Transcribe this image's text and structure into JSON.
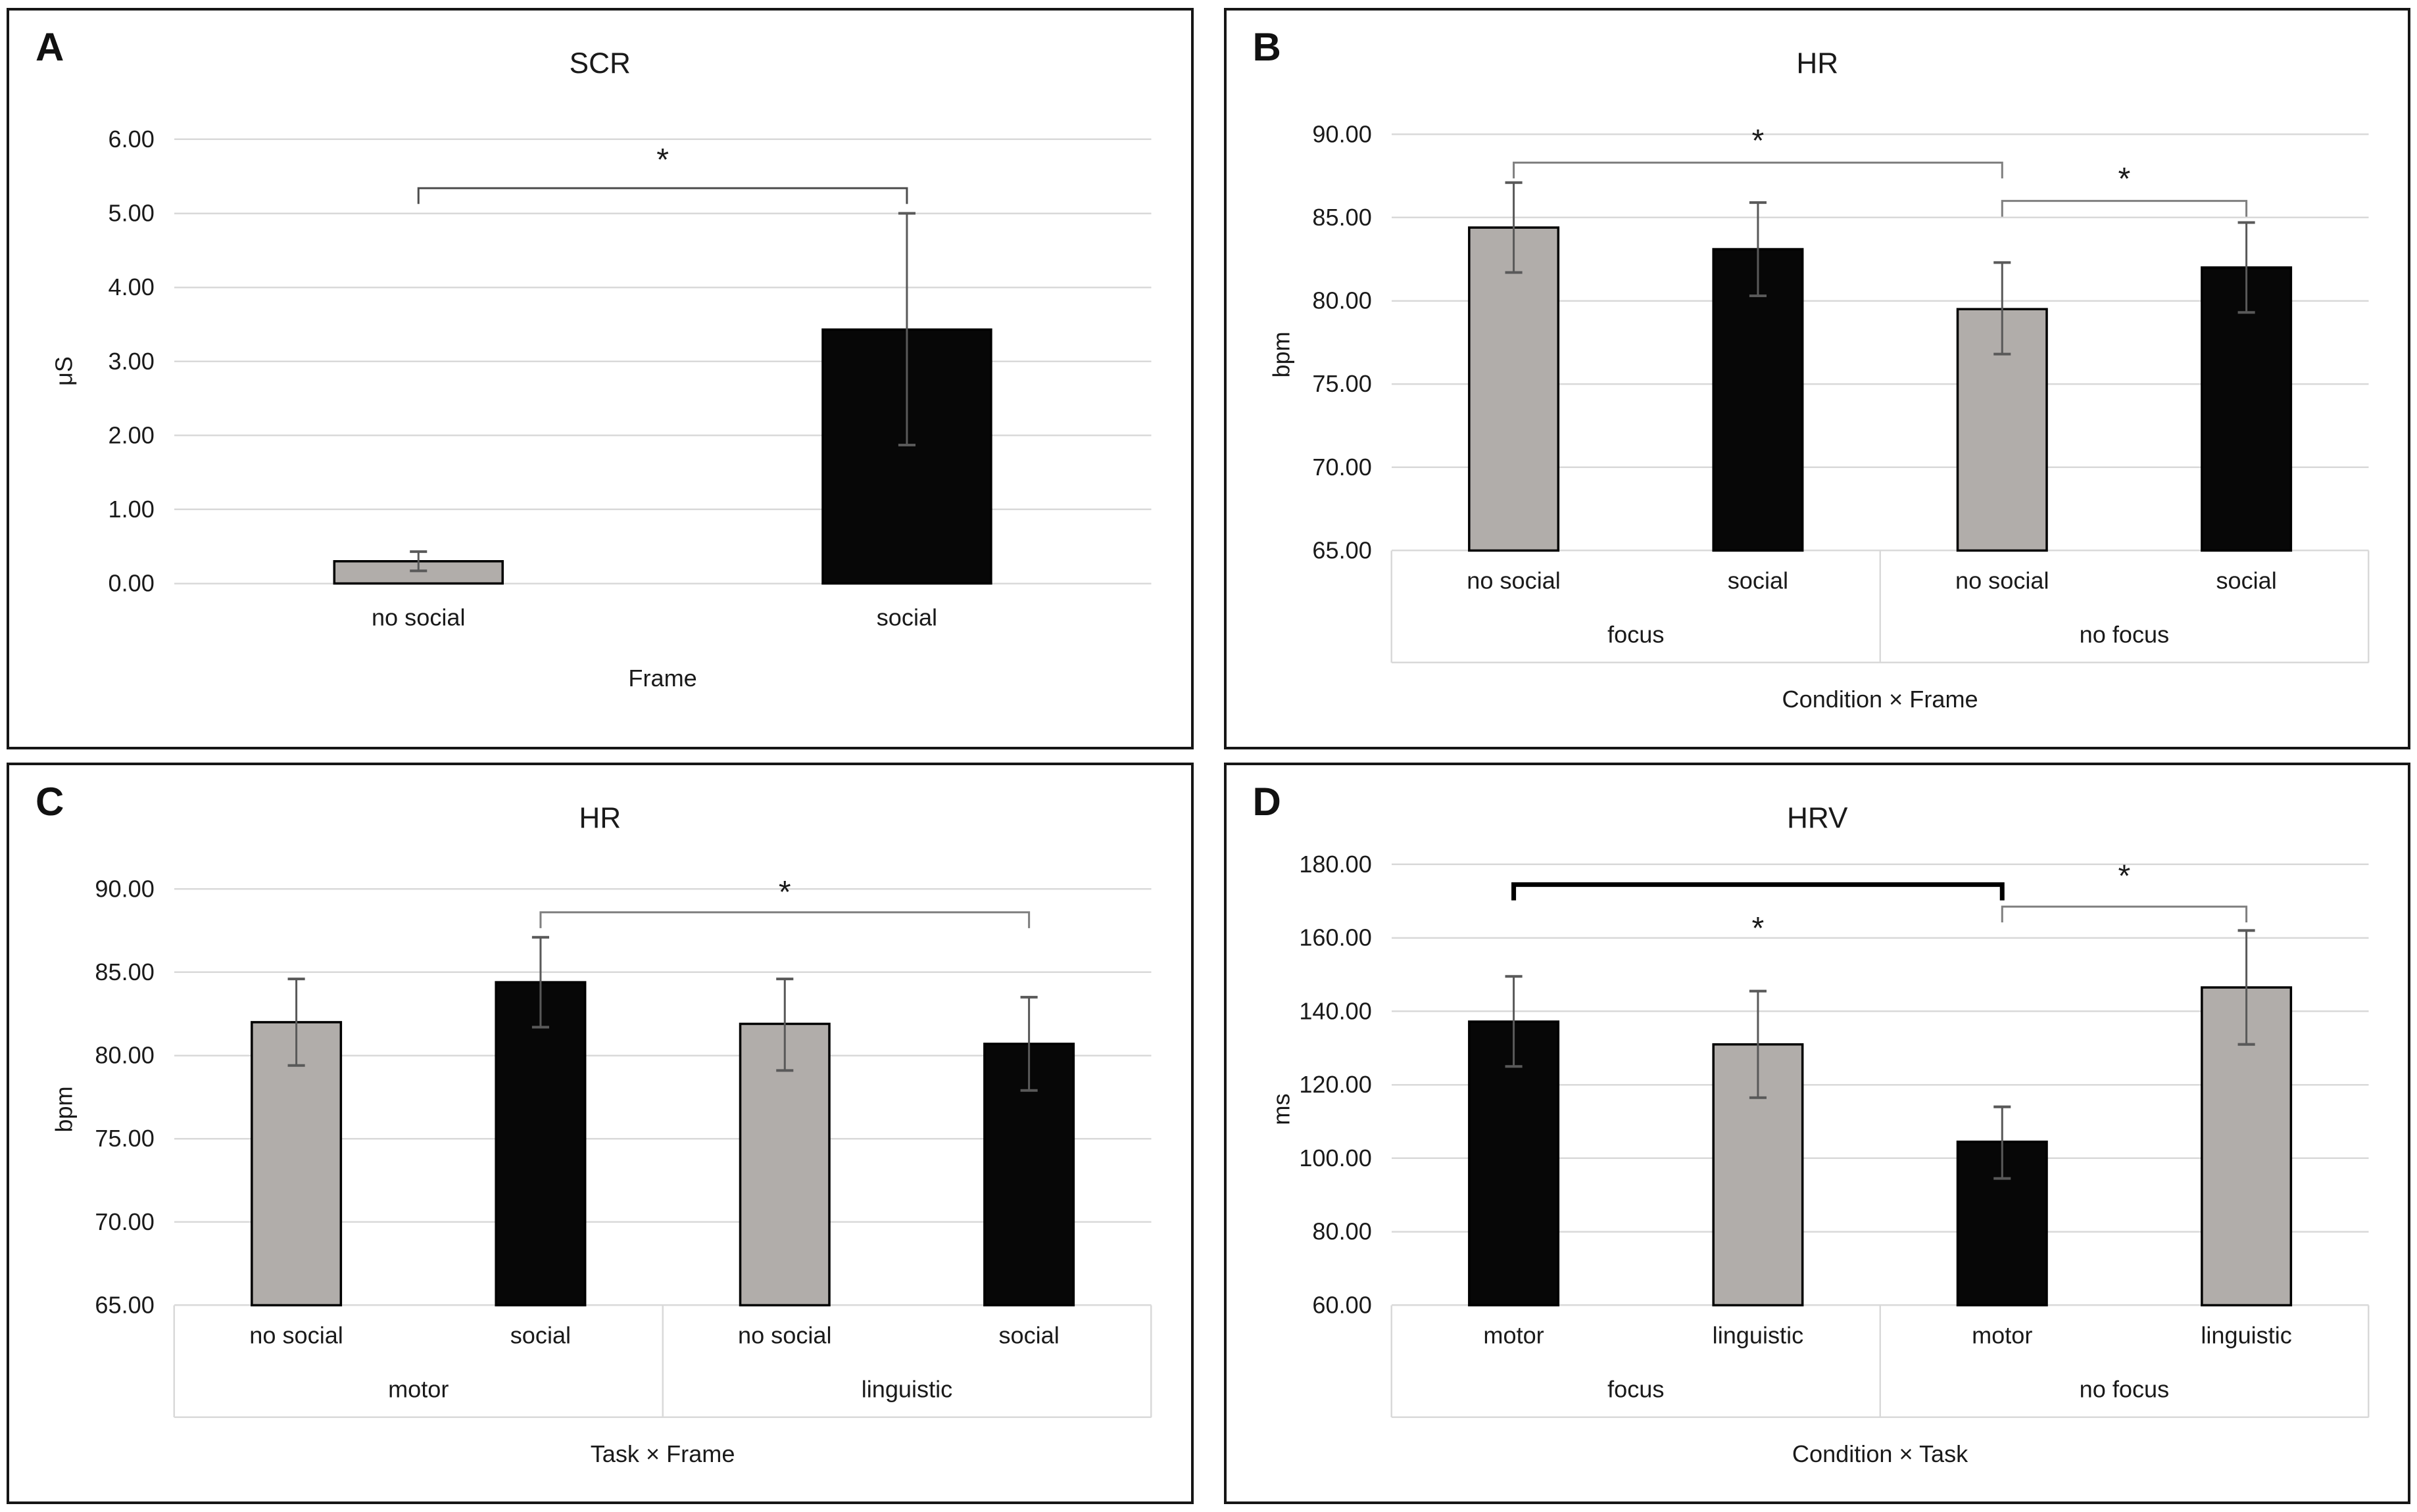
{
  "figure": {
    "background": "#ffffff",
    "panel_border_color": "#161616"
  },
  "colors": {
    "bar_gray": "#b1adaa",
    "bar_black": "#070707",
    "bar_border": "#000000",
    "gridline": "#d9d9d9",
    "error_bar": "#595959",
    "bracket_thin": "#7f7f7f",
    "bracket_dark": "#4d4d4d",
    "bracket_thick": "#000000",
    "table_line": "#d9d9d9",
    "text": "#1a1a1a"
  },
  "chart_data": [
    {
      "panel_label": "A",
      "type": "bar",
      "title": "SCR",
      "ylabel": "μS",
      "xlabel": "Frame",
      "ylim": [
        0,
        6
      ],
      "ytick_step": 1,
      "ymax_render": 6.45,
      "grid_on": true,
      "legend": "none",
      "categories": [
        "no social",
        "social"
      ],
      "groups": [],
      "bars": [
        {
          "category": "no social",
          "value": 0.3,
          "err": [
            0.17,
            0.43
          ],
          "color": "gray"
        },
        {
          "category": "social",
          "value": 3.43,
          "err": [
            1.87,
            5.0
          ],
          "color": "black"
        }
      ],
      "sig_brackets": [
        {
          "from": 0,
          "to": 1,
          "y": 5.34,
          "label": "*",
          "label_y": 5.72,
          "weight": "dark"
        }
      ]
    },
    {
      "panel_label": "B",
      "type": "bar",
      "title": "HR",
      "ylabel": "bpm",
      "xlabel": "Condition × Frame",
      "ylim": [
        65,
        90
      ],
      "ytick_step": 5,
      "ymax_render": 91.7,
      "grid_on": true,
      "legend": "none",
      "categories": [
        "no social",
        "social",
        "no social",
        "social"
      ],
      "groups": [
        {
          "label": "focus",
          "from": 0,
          "to": 1
        },
        {
          "label": "no focus",
          "from": 2,
          "to": 3
        }
      ],
      "bars": [
        {
          "category": "no social",
          "value": 84.4,
          "err": [
            81.7,
            87.1
          ],
          "color": "gray"
        },
        {
          "category": "social",
          "value": 83.1,
          "err": [
            80.3,
            85.9
          ],
          "color": "black"
        },
        {
          "category": "no social",
          "value": 79.5,
          "err": [
            76.8,
            82.3
          ],
          "color": "gray"
        },
        {
          "category": "social",
          "value": 82.0,
          "err": [
            79.3,
            84.7
          ],
          "color": "black"
        }
      ],
      "sig_brackets": [
        {
          "from": 0,
          "to": 2,
          "y": 88.3,
          "label": "*",
          "label_y": 89.6,
          "weight": "thin"
        },
        {
          "from": 2,
          "to": 3,
          "y": 86.0,
          "label": "*",
          "label_y": 87.3,
          "weight": "thin"
        }
      ]
    },
    {
      "panel_label": "C",
      "type": "bar",
      "title": "HR",
      "ylabel": "bpm",
      "xlabel": "Task × Frame",
      "ylim": [
        65,
        90
      ],
      "ytick_step": 5,
      "ymax_render": 91.7,
      "grid_on": true,
      "legend": "none",
      "categories": [
        "no social",
        "social",
        "no social",
        "social"
      ],
      "groups": [
        {
          "label": "motor",
          "from": 0,
          "to": 1
        },
        {
          "label": "linguistic",
          "from": 2,
          "to": 3
        }
      ],
      "bars": [
        {
          "category": "no social",
          "value": 82.0,
          "err": [
            79.4,
            84.6
          ],
          "color": "gray"
        },
        {
          "category": "social",
          "value": 84.4,
          "err": [
            81.7,
            87.1
          ],
          "color": "black"
        },
        {
          "category": "no social",
          "value": 81.9,
          "err": [
            79.1,
            84.6
          ],
          "color": "gray"
        },
        {
          "category": "social",
          "value": 80.7,
          "err": [
            77.9,
            83.5
          ],
          "color": "black"
        }
      ],
      "sig_brackets": [
        {
          "from": 1,
          "to": 3,
          "y": 88.6,
          "label": "*",
          "label_y": 89.8,
          "weight": "thin"
        }
      ]
    },
    {
      "panel_label": "D",
      "type": "bar",
      "title": "HRV",
      "ylabel": "ms",
      "xlabel": "Condition × Task",
      "ylim": [
        60,
        160
      ],
      "ytick_step": 20,
      "ymax_render": 181,
      "grid_on": true,
      "legend": "none",
      "categories": [
        "motor",
        "linguistic",
        "motor",
        "linguistic"
      ],
      "groups": [
        {
          "label": "focus",
          "from": 0,
          "to": 1
        },
        {
          "label": "no focus",
          "from": 2,
          "to": 3
        }
      ],
      "bars": [
        {
          "category": "motor",
          "value": 137.2,
          "err": [
            125.0,
            149.5
          ],
          "color": "black"
        },
        {
          "category": "linguistic",
          "value": 131.0,
          "err": [
            116.5,
            145.5
          ],
          "color": "gray"
        },
        {
          "category": "motor",
          "value": 104.5,
          "err": [
            94.5,
            114.0
          ],
          "color": "black"
        },
        {
          "category": "linguistic",
          "value": 146.5,
          "err": [
            131.0,
            162.0
          ],
          "color": "gray"
        }
      ],
      "sig_brackets": [
        {
          "from": 0,
          "to": 2,
          "y": 174.5,
          "label": "*",
          "label_y": 162.5,
          "weight": "thick"
        },
        {
          "from": 2,
          "to": 3,
          "y": 168.5,
          "label": "*",
          "label_y": 176.8,
          "weight": "thin"
        }
      ]
    }
  ]
}
